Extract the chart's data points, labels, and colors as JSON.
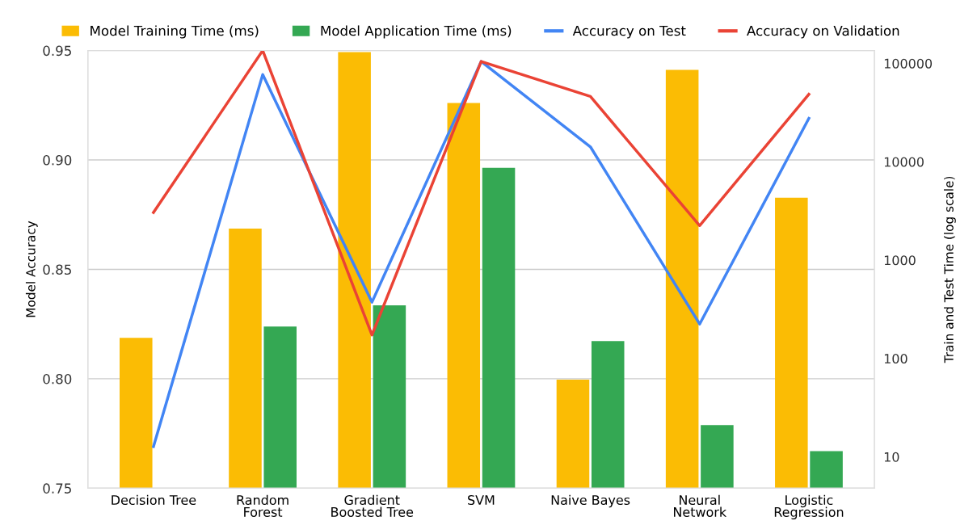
{
  "chart_data": {
    "type": "bar",
    "categories": [
      "Decision Tree",
      "Random\nForest",
      "Gradient\nBoosted Tree",
      "SVM",
      "Naive Bayes",
      "Neural\nNetwork",
      "Logistic\nRegression"
    ],
    "series": [
      {
        "name": "Model Training Time (ms)",
        "color": "#fbbc04",
        "axis": "y2",
        "values": [
          162,
          2090,
          130000,
          39500,
          61,
          86000,
          4300
        ]
      },
      {
        "name": "Model Application Time (ms)",
        "color": "#34a853",
        "axis": "y2",
        "values": [
          null,
          211,
          346,
          8670,
          150,
          21,
          11.4
        ]
      },
      {
        "name": "Accuracy on Test",
        "color": "#4285f4",
        "type": "line",
        "values": [
          0.769,
          0.939,
          0.835,
          0.945,
          0.906,
          0.825,
          0.919
        ]
      },
      {
        "name": "Accuracy on Validation",
        "color": "#ea4335",
        "type": "line",
        "values": [
          0.876,
          0.95,
          0.82,
          0.945,
          0.929,
          0.87,
          0.93
        ]
      }
    ],
    "ylabel": "Model Accuracy",
    "y2label": "Train and Test Time (log scale)",
    "ylim": [
      0.75,
      0.95
    ],
    "yticks": [
      0.75,
      {
        "value": 0.8,
        "label": "0.80"
      },
      0.85,
      {
        "value": 0.9,
        "label": "0.90"
      },
      0.95
    ],
    "y2lim": [
      4.8,
      135000
    ],
    "y2ticks": [
      10,
      100,
      1000,
      10000,
      100000
    ],
    "log": "y2",
    "grid": "y",
    "legend": "top",
    "marker": "none",
    "line_style": "solid"
  }
}
